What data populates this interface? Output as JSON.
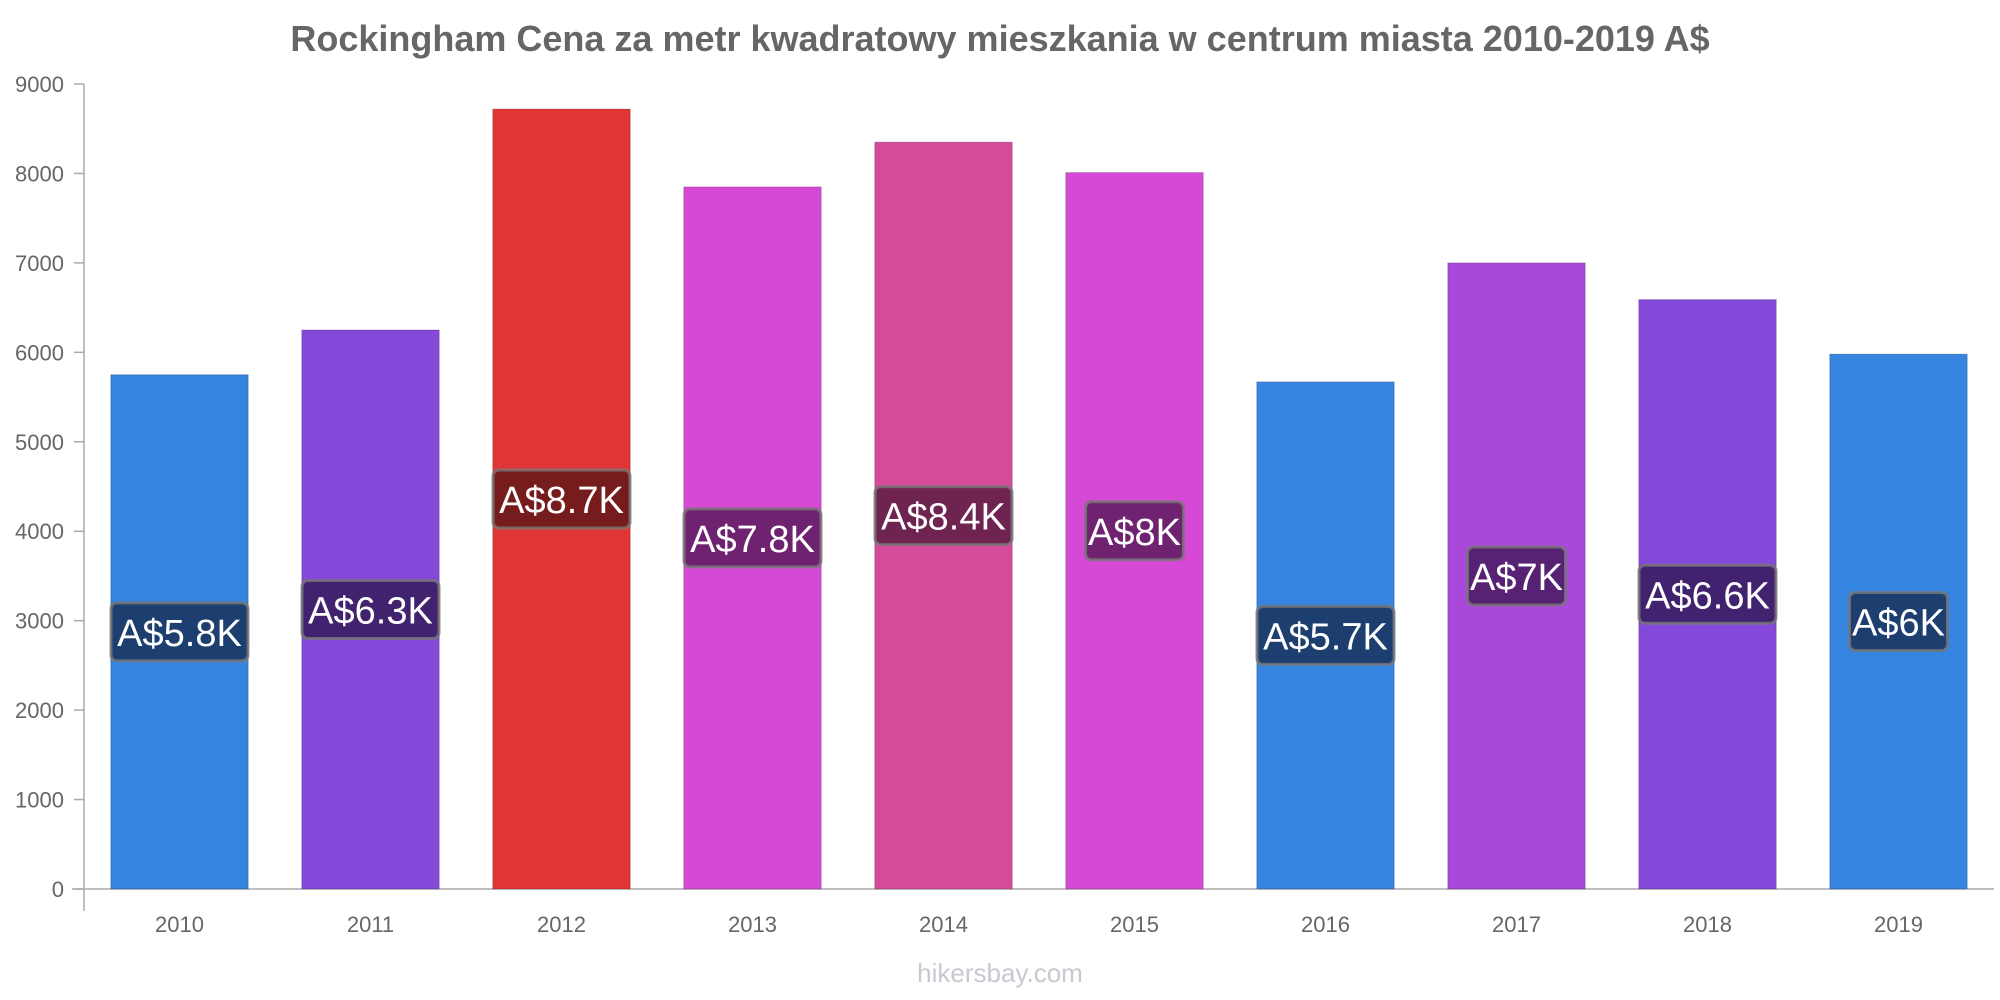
{
  "chart_data": {
    "type": "bar",
    "title": "Rockingham Cena za metr kwadratowy mieszkania w centrum miasta 2010-2019 A$",
    "categories": [
      "2010",
      "2011",
      "2012",
      "2013",
      "2014",
      "2015",
      "2016",
      "2017",
      "2018",
      "2019"
    ],
    "values": [
      5750,
      6250,
      8720,
      7850,
      8350,
      8010,
      5670,
      7000,
      6590,
      5980
    ],
    "data_labels": [
      "A$5.8K",
      "A$6.3K",
      "A$8.7K",
      "A$7.8K",
      "A$8.4K",
      "A$8K",
      "A$5.7K",
      "A$7K",
      "A$6.6K",
      "A$6K"
    ],
    "bar_colors": [
      "#3584e0",
      "#8549d9",
      "#e03535",
      "#d649d6",
      "#d64a9a",
      "#d649d6",
      "#3584e0",
      "#a949d9",
      "#8549d9",
      "#3584e0"
    ],
    "label_colors": [
      "#1a3a66",
      "#3b1f66",
      "#6e1a1a",
      "#662066",
      "#66204a",
      "#662066",
      "#1a3a66",
      "#50206a",
      "#3b1f66",
      "#1a3a66"
    ],
    "yticks": [
      "0",
      "1000",
      "2000",
      "3000",
      "4000",
      "5000",
      "6000",
      "7000",
      "8000",
      "9000"
    ],
    "ylim": [
      0,
      9000
    ],
    "xlabel": "",
    "ylabel": "",
    "grid": false,
    "legend": "none"
  },
  "watermark": "hikersbay.com"
}
